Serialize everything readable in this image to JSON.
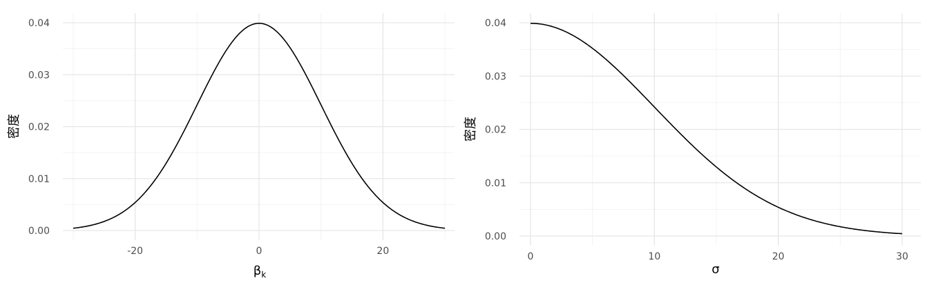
{
  "chart_data": [
    {
      "type": "line",
      "xlabel": "βk",
      "xlabel_main": "β",
      "xlabel_sub": "k",
      "ylabel": "密度",
      "xlim": [
        -30,
        30
      ],
      "ylim": [
        0,
        0.04
      ],
      "x_ticks": [
        -20,
        0,
        20
      ],
      "x_tick_labels": [
        "-20",
        "0",
        "20"
      ],
      "y_ticks": [
        0,
        0.01,
        0.02,
        0.03,
        0.04
      ],
      "y_tick_labels": [
        "0.00",
        "0.01",
        "0.02",
        "0.03",
        "0.04"
      ],
      "grid": true,
      "series": [
        {
          "x": [
            -30,
            -27.5,
            -25,
            -22.5,
            -20,
            -17.5,
            -15,
            -12.5,
            -10,
            -7.5,
            -5,
            -2.5,
            0,
            2.5,
            5,
            7.5,
            10,
            12.5,
            15,
            17.5,
            20,
            22.5,
            25,
            27.5,
            30
          ],
          "values": [
            0.00044,
            0.00091,
            0.00175,
            0.00309,
            0.0054,
            0.0086,
            0.013,
            0.0183,
            0.0242,
            0.0301,
            0.0352,
            0.0387,
            0.0399,
            0.0387,
            0.0352,
            0.0301,
            0.0242,
            0.0183,
            0.013,
            0.0086,
            0.0054,
            0.00309,
            0.00175,
            0.00091,
            0.00044
          ]
        }
      ]
    },
    {
      "type": "line",
      "xlabel": "σ",
      "ylabel": "密度",
      "xlim": [
        0,
        30
      ],
      "ylim": [
        0,
        0.04
      ],
      "x_ticks": [
        0,
        10,
        20,
        30
      ],
      "x_tick_labels": [
        "0",
        "10",
        "20",
        "30"
      ],
      "y_ticks": [
        0,
        0.01,
        0.02,
        0.03,
        0.04
      ],
      "y_tick_labels": [
        "0.00",
        "0.01",
        "0.02",
        "0.03",
        "0.04"
      ],
      "grid": true,
      "series": [
        {
          "x": [
            0,
            2.5,
            5,
            7.5,
            10,
            12.5,
            15,
            17.5,
            20,
            22.5,
            25,
            27.5,
            30
          ],
          "values": [
            0.0399,
            0.0387,
            0.0352,
            0.0301,
            0.0242,
            0.0183,
            0.013,
            0.0086,
            0.0054,
            0.00309,
            0.00175,
            0.00091,
            0.00044
          ]
        }
      ]
    }
  ]
}
